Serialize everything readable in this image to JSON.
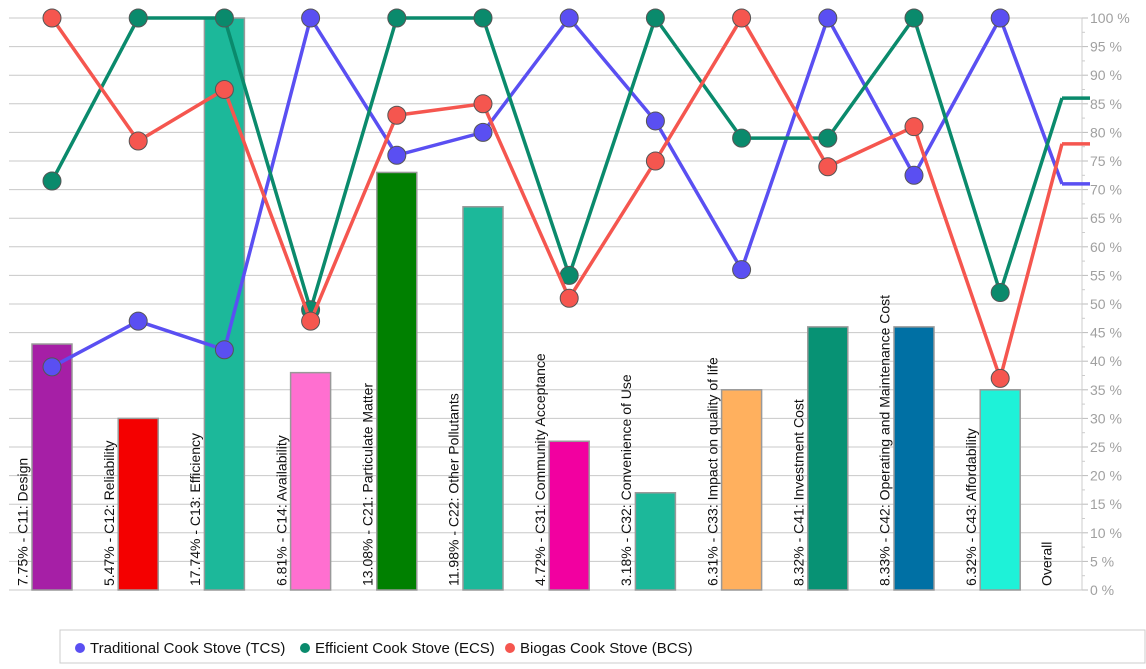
{
  "chart_data": {
    "type": "bar_line",
    "categories": [
      "7.75% - C11: Design",
      "5.47% - C12: Reliability",
      "17.74% - C13: Efficiency",
      "6.81% - C14: Availability",
      "13.08% - C21: Particulate Matter",
      "11.98% - C22: Other Pollutants",
      "4.72% - C31: Community Acceptance",
      "3.18% - C32: Convenience of Use",
      "6.31% - C33: Impact on quality of life",
      "8.32% - C41: Investment Cost",
      "8.33% - C42: Operating and Maintenance Cost",
      "6.32% - C43: Affordability",
      "Overall"
    ],
    "bars": {
      "values": [
        43,
        30,
        100,
        38,
        73,
        67,
        26,
        17,
        35,
        46,
        46,
        35,
        null
      ],
      "colors": [
        "#a61fa6",
        "#f40000",
        "#1cb89a",
        "#ff6fd0",
        "#008000",
        "#1cb89a",
        "#f200a0",
        "#1cb89a",
        "#ffb05e",
        "#079274",
        "#0070a4",
        "#1ef2d8",
        null
      ]
    },
    "series": [
      {
        "name": "Traditional Cook Stove (TCS)",
        "color": "#5a4ff2",
        "values": [
          39,
          47,
          42,
          100,
          76,
          80,
          100,
          82,
          56,
          100,
          72.5,
          100,
          71
        ]
      },
      {
        "name": "Efficient Cook Stove (ECS)",
        "color": "#0a8a6c",
        "values": [
          71.5,
          100,
          100,
          49,
          100,
          100,
          55,
          100,
          79,
          79,
          100,
          52,
          86
        ]
      },
      {
        "name": "Biogas Cook Stove (BCS)",
        "color": "#f5564f",
        "values": [
          100,
          78.5,
          87.5,
          47,
          83,
          85,
          51,
          75,
          100,
          74,
          81,
          37,
          78
        ]
      }
    ],
    "ylim": [
      0,
      100
    ],
    "yticks": [
      {
        "value": 0,
        "label": "0 %"
      },
      {
        "value": 5,
        "label": "5 %"
      },
      {
        "value": 10,
        "label": "10 %"
      },
      {
        "value": 15,
        "label": "15 %"
      },
      {
        "value": 20,
        "label": "20 %"
      },
      {
        "value": 25,
        "label": "25 %"
      },
      {
        "value": 30,
        "label": "30 %"
      },
      {
        "value": 35,
        "label": "35 %"
      },
      {
        "value": 40,
        "label": "40 %"
      },
      {
        "value": 45,
        "label": "45 %"
      },
      {
        "value": 50,
        "label": "50 %"
      },
      {
        "value": 55,
        "label": "55 %"
      },
      {
        "value": 60,
        "label": "60 %"
      },
      {
        "value": 65,
        "label": "65 %"
      },
      {
        "value": 70,
        "label": "70 %"
      },
      {
        "value": 75,
        "label": "75 %"
      },
      {
        "value": 80,
        "label": "80 %"
      },
      {
        "value": 85,
        "label": "85 %"
      },
      {
        "value": 90,
        "label": "90 %"
      },
      {
        "value": 95,
        "label": "95 %"
      },
      {
        "value": 100,
        "label": "100 %"
      }
    ],
    "grid": true,
    "legend": "bottom"
  }
}
